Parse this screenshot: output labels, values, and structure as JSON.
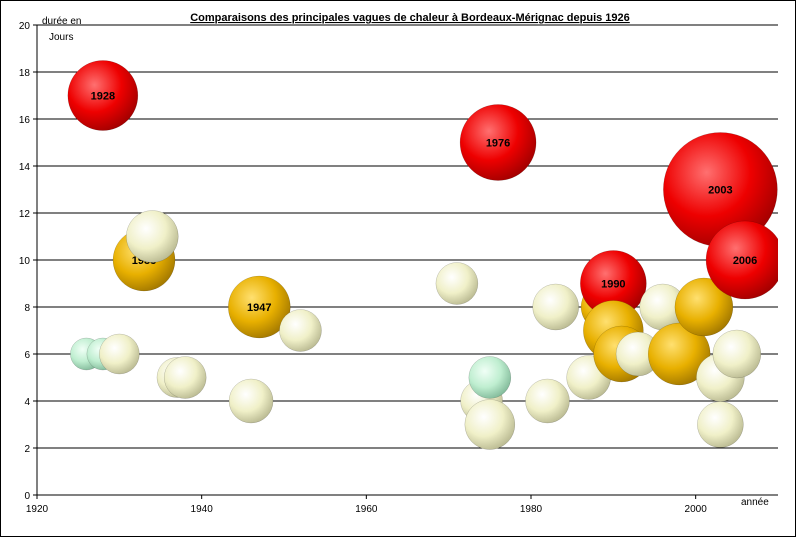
{
  "chart_data": {
    "type": "bubble",
    "title": "Comparaisons des principales vagues de chaleur à Bordeaux-Mérignac depuis 1926",
    "ylabel_line1": "durée en",
    "ylabel_line2": "Jours",
    "xlabel": "année",
    "xlim": [
      1920,
      2010
    ],
    "ylim": [
      0,
      20
    ],
    "x_ticks": [
      "1920",
      "1940",
      "1960",
      "1980",
      "2000"
    ],
    "y_ticks": [
      "0",
      "2",
      "4",
      "6",
      "8",
      "10",
      "12",
      "14",
      "16",
      "18",
      "20"
    ],
    "grid": "horizontal",
    "colors": {
      "red": "#ee0000",
      "gold": "#e8b000",
      "cream": "#f0f0c8",
      "mint": "#bfeed0"
    },
    "bubbles": [
      {
        "x": 1926,
        "y": 6,
        "r": 16,
        "color": "mint",
        "label": ""
      },
      {
        "x": 1928,
        "y": 6,
        "r": 16,
        "color": "mint",
        "label": ""
      },
      {
        "x": 1930,
        "y": 6,
        "r": 20,
        "color": "cream",
        "label": ""
      },
      {
        "x": 1928,
        "y": 17,
        "r": 35,
        "color": "red",
        "label": "1928"
      },
      {
        "x": 1933,
        "y": 10,
        "r": 31,
        "color": "gold",
        "label": "1933"
      },
      {
        "x": 1934,
        "y": 11,
        "r": 26,
        "color": "cream",
        "label": ""
      },
      {
        "x": 1937,
        "y": 5,
        "r": 20,
        "color": "cream",
        "label": ""
      },
      {
        "x": 1938,
        "y": 5,
        "r": 21,
        "color": "cream",
        "label": ""
      },
      {
        "x": 1946,
        "y": 4,
        "r": 22,
        "color": "cream",
        "label": ""
      },
      {
        "x": 1947,
        "y": 8,
        "r": 31,
        "color": "gold",
        "label": "1947"
      },
      {
        "x": 1952,
        "y": 7,
        "r": 21,
        "color": "cream",
        "label": ""
      },
      {
        "x": 1971,
        "y": 9,
        "r": 21,
        "color": "cream",
        "label": ""
      },
      {
        "x": 1974,
        "y": 4,
        "r": 21,
        "color": "cream",
        "label": ""
      },
      {
        "x": 1975,
        "y": 5,
        "r": 21,
        "color": "mint",
        "label": ""
      },
      {
        "x": 1975,
        "y": 3,
        "r": 25,
        "color": "cream",
        "label": ""
      },
      {
        "x": 1976,
        "y": 15,
        "r": 38,
        "color": "red",
        "label": "1976"
      },
      {
        "x": 1982,
        "y": 4,
        "r": 22,
        "color": "cream",
        "label": ""
      },
      {
        "x": 1983,
        "y": 8,
        "r": 23,
        "color": "cream",
        "label": ""
      },
      {
        "x": 1987,
        "y": 5,
        "r": 22,
        "color": "cream",
        "label": ""
      },
      {
        "x": 1989,
        "y": 8,
        "r": 24,
        "color": "gold",
        "label": ""
      },
      {
        "x": 1990,
        "y": 9,
        "r": 33,
        "color": "red",
        "label": "1990"
      },
      {
        "x": 1990,
        "y": 7,
        "r": 30,
        "color": "gold",
        "label": ""
      },
      {
        "x": 1991,
        "y": 6,
        "r": 28,
        "color": "gold",
        "label": ""
      },
      {
        "x": 1993,
        "y": 6,
        "r": 22,
        "color": "cream",
        "label": ""
      },
      {
        "x": 1996,
        "y": 8,
        "r": 23,
        "color": "cream",
        "label": ""
      },
      {
        "x": 1998,
        "y": 6,
        "r": 31,
        "color": "gold",
        "label": ""
      },
      {
        "x": 2001,
        "y": 8,
        "r": 29,
        "color": "gold",
        "label": ""
      },
      {
        "x": 2003,
        "y": 13,
        "r": 57,
        "color": "red",
        "label": "2003"
      },
      {
        "x": 2003,
        "y": 5,
        "r": 24,
        "color": "cream",
        "label": ""
      },
      {
        "x": 2003,
        "y": 3,
        "r": 23,
        "color": "cream",
        "label": ""
      },
      {
        "x": 2005,
        "y": 6,
        "r": 24,
        "color": "cream",
        "label": ""
      },
      {
        "x": 2006,
        "y": 10,
        "r": 39,
        "color": "red",
        "label": "2006"
      }
    ]
  }
}
